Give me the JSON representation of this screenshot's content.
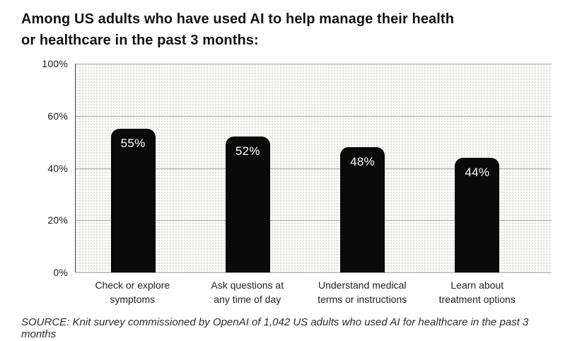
{
  "header": {
    "title_lines": [
      "Among US adults who have used AI to help manage their health",
      "or healthcare in the past 3 months:"
    ]
  },
  "chart_data": {
    "type": "bar",
    "title": "Among US adults who have used AI to help manage their health or healthcare in the past 3 months:",
    "categories": [
      "Check or explore\nsymptoms",
      "Ask questions at\nany time of day",
      "Understand medical\nterms or instructions",
      "Learn about\ntreatment options"
    ],
    "values": [
      55,
      52,
      48,
      44
    ],
    "value_labels": [
      "55%",
      "52%",
      "48%",
      "44%"
    ],
    "xlabel": "",
    "ylabel": "",
    "ylim": [
      0,
      100
    ],
    "yticks": [
      0,
      20,
      40,
      60,
      100
    ],
    "ytick_labels": [
      "0%",
      "20%",
      "40%",
      "60%",
      "100%"
    ],
    "axis_note": "y ticks evenly spaced, 80% tick absent",
    "grid": true,
    "legend": "none",
    "bar_color": "#0a0a0a",
    "value_label_color": "#ffffff",
    "plot_background": "#fafaf8",
    "gridline_color": "#a8a8a6"
  },
  "source": {
    "text": "SOURCE: Knit survey commissioned by OpenAI of 1,042 US adults who used AI for healthcare in the past 3 months"
  }
}
